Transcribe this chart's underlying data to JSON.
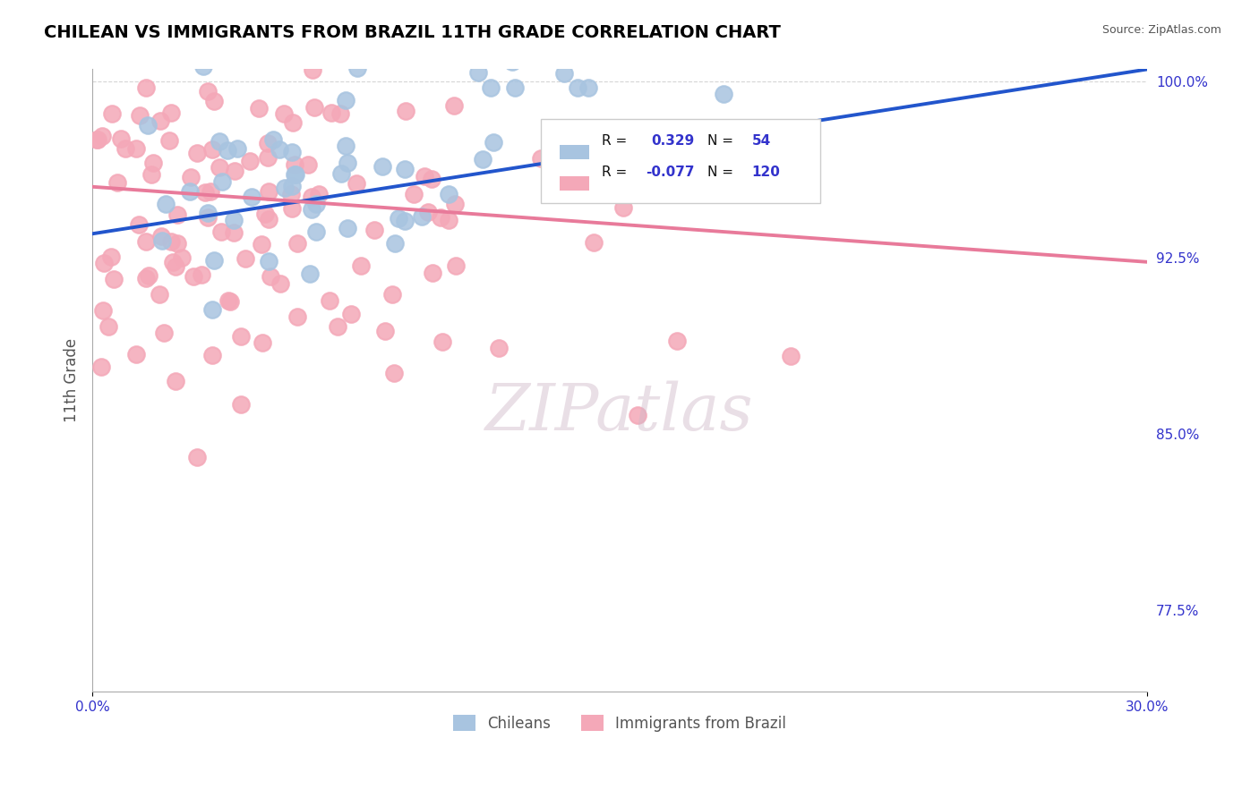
{
  "title": "CHILEAN VS IMMIGRANTS FROM BRAZIL 11TH GRADE CORRELATION CHART",
  "source_text": "Source: ZipAtlas.com",
  "xlabel": "",
  "ylabel": "11th Grade",
  "xlim": [
    0.0,
    0.3
  ],
  "ylim": [
    0.74,
    1.005
  ],
  "xtick_labels": [
    "0.0%",
    "30.0%"
  ],
  "ytick_labels_right": [
    "77.5%",
    "85.0%",
    "92.5%",
    "100.0%"
  ],
  "ytick_vals_right": [
    0.775,
    0.85,
    0.925,
    1.0
  ],
  "legend_r1": "R =",
  "legend_r1_val": "0.329",
  "legend_n1": "N =",
  "legend_n1_val": "54",
  "legend_r2": "R =",
  "legend_r2_val": "-0.077",
  "legend_n2": "N =",
  "legend_n2_val": "120",
  "chilean_color": "#a8c4e0",
  "brazil_color": "#f4a8b8",
  "blue_line_color": "#2255cc",
  "pink_line_color": "#e87a9a",
  "watermark": "ZIPatlas",
  "watermark_color": "#d0b8c8",
  "chilean_label": "Chileans",
  "brazil_label": "Immigrants from Brazil",
  "chilean_R": 0.329,
  "chilean_N": 54,
  "brazil_R": -0.077,
  "brazil_N": 120,
  "blue_trend_x": [
    0.0,
    0.3
  ],
  "blue_trend_y": [
    0.935,
    1.005
  ],
  "pink_trend_x": [
    0.0,
    0.3
  ],
  "pink_trend_y": [
    0.955,
    0.923
  ],
  "background_color": "#ffffff",
  "grid_color": "#cccccc",
  "title_color": "#000000",
  "title_fontsize": 14,
  "axis_label_color": "#555555"
}
